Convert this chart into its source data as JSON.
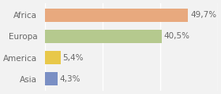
{
  "categories": [
    "Asia",
    "America",
    "Europa",
    "Africa"
  ],
  "values": [
    4.3,
    5.4,
    40.5,
    49.7
  ],
  "labels": [
    "4,3%",
    "5,4%",
    "40,5%",
    "49,7%"
  ],
  "bar_colors": [
    "#7a8fc4",
    "#e8c84a",
    "#b5c98e",
    "#e8a97e"
  ],
  "background_color": "#f2f2f2",
  "xlim": [
    0,
    60
  ],
  "bar_height": 0.62,
  "label_fontsize": 7.5,
  "tick_fontsize": 7.5,
  "grid_color": "#ffffff",
  "text_color": "#666666"
}
